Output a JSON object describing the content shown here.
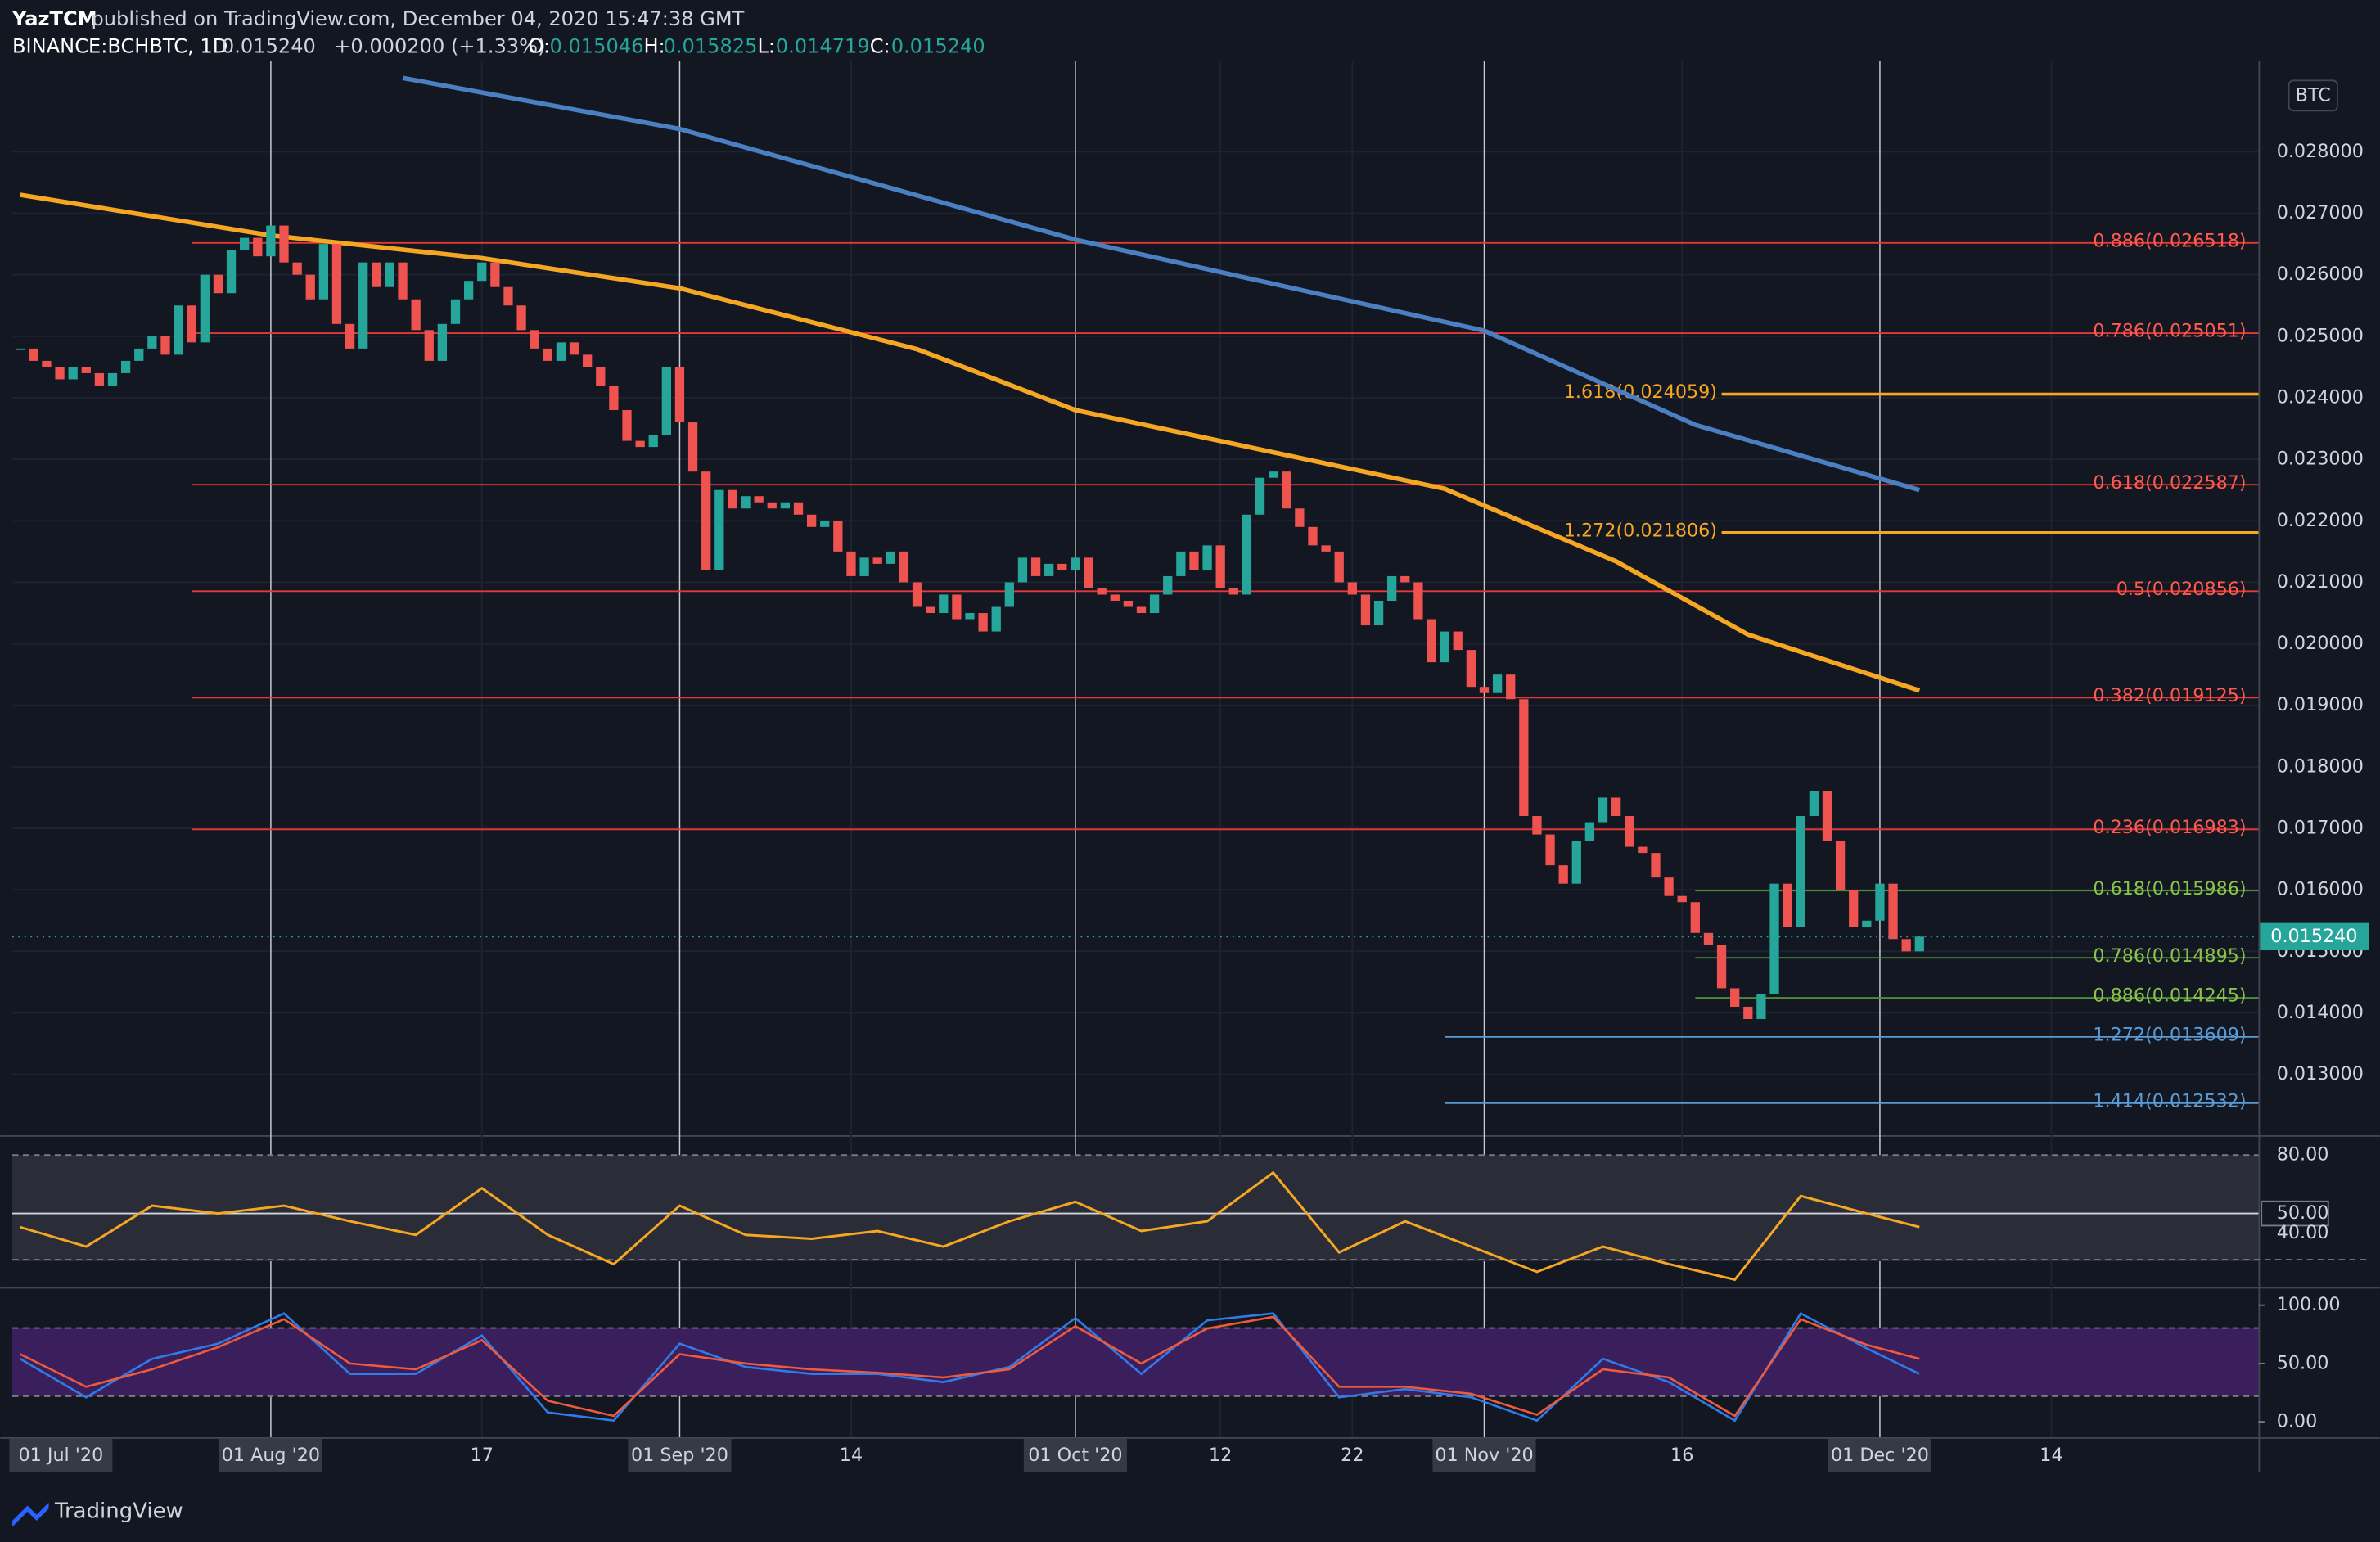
{
  "chart_data": {
    "type": "candlestick",
    "header": {
      "publisher": "YazTCM",
      "published": "published on TradingView.com, December 04, 2020 15:47:38 GMT",
      "symbol": "BINANCE:BCHBTC, 1D",
      "last": "0.015240",
      "change": "+0.000200 (+1.33%)",
      "o_label": "O:",
      "open": "0.015046",
      "h_label": "H:",
      "high": "0.015825",
      "l_label": "L:",
      "low": "0.014719",
      "c_label": "C:",
      "close": "0.015240"
    },
    "unit": "BTC",
    "last_price_label": "0.015240",
    "brand": "TradingView",
    "series": [
      {
        "name": "BCHBTC",
        "up_color": "#26a69a",
        "down_color": "#ef5350",
        "values": [
          0.0248,
          0.0246,
          0.0245,
          0.0243,
          0.0245,
          0.0244,
          0.0242,
          0.0244,
          0.0246,
          0.0248,
          0.025,
          0.0247,
          0.0255,
          0.0249,
          0.026,
          0.0257,
          0.0264,
          0.0266,
          0.0263,
          0.0268,
          0.0262,
          0.026,
          0.0256,
          0.0265,
          0.0252,
          0.0248,
          0.0262,
          0.0258,
          0.0262,
          0.0256,
          0.0251,
          0.0246,
          0.0252,
          0.0256,
          0.0259,
          0.0262,
          0.0258,
          0.0255,
          0.0251,
          0.0248,
          0.0246,
          0.0249,
          0.0247,
          0.0245,
          0.0242,
          0.0238,
          0.0233,
          0.0232,
          0.0234,
          0.0245,
          0.0236,
          0.0228,
          0.0212,
          0.0225,
          0.0222,
          0.0224,
          0.0223,
          0.0222,
          0.0223,
          0.0221,
          0.0219,
          0.022,
          0.0215,
          0.0211,
          0.0214,
          0.0213,
          0.0215,
          0.021,
          0.0206,
          0.0205,
          0.0208,
          0.0204,
          0.0205,
          0.0202,
          0.0206,
          0.021,
          0.0214,
          0.0211,
          0.0213,
          0.0212,
          0.0214,
          0.0209,
          0.0208,
          0.0207,
          0.0206,
          0.0205,
          0.0208,
          0.0211,
          0.0215,
          0.0212,
          0.0216,
          0.0209,
          0.0208,
          0.0221,
          0.0227,
          0.0228,
          0.0222,
          0.0219,
          0.0216,
          0.0215,
          0.021,
          0.0208,
          0.0203,
          0.0207,
          0.0211,
          0.021,
          0.0204,
          0.0197,
          0.0202,
          0.0199,
          0.0193,
          0.0192,
          0.0195,
          0.0191,
          0.0172,
          0.0169,
          0.0164,
          0.0161,
          0.0168,
          0.0171,
          0.0175,
          0.0172,
          0.0167,
          0.0166,
          0.0162,
          0.0159,
          0.0158,
          0.0153,
          0.0151,
          0.0144,
          0.0141,
          0.0139,
          0.0143,
          0.0161,
          0.0154,
          0.0172,
          0.0176,
          0.0168,
          0.016,
          0.0154,
          0.0155,
          0.0161,
          0.0152,
          0.015,
          0.01524
        ]
      }
    ],
    "moving_averages": [
      {
        "color": "#4a7fc1",
        "x": [
          29,
          50,
          80,
          94,
          111,
          127,
          144
        ],
        "values": [
          0.0292,
          0.02837,
          0.02657,
          0.0259,
          0.02509,
          0.02356,
          0.0225
        ]
      },
      {
        "color": "#f5a623",
        "x": [
          0,
          19,
          35,
          50,
          68,
          80,
          94,
          108,
          121,
          131,
          144
        ],
        "values": [
          0.0273,
          0.02664,
          0.02627,
          0.02578,
          0.02479,
          0.0238,
          0.02316,
          0.02252,
          0.02134,
          0.02015,
          0.01924
        ]
      }
    ],
    "levels": [
      {
        "label": "0.886(0.026518)",
        "value": 0.026518,
        "color": "#e53935"
      },
      {
        "label": "0.786(0.025051)",
        "value": 0.025051,
        "color": "#e53935"
      },
      {
        "label": "1.618(0.024059)",
        "value": 0.024059,
        "color": "#f5a623"
      },
      {
        "label": "0.618(0.022587)",
        "value": 0.022587,
        "color": "#e53935"
      },
      {
        "label": "1.272(0.021806)",
        "value": 0.021806,
        "color": "#f5a623"
      },
      {
        "label": "0.5(0.020856)",
        "value": 0.020856,
        "color": "#e53935"
      },
      {
        "label": "0.382(0.019125)",
        "value": 0.019125,
        "color": "#e53935"
      },
      {
        "label": "0.236(0.016983)",
        "value": 0.016983,
        "color": "#e53935"
      },
      {
        "label": "0.618(0.015986)",
        "value": 0.015986,
        "color": "#4c8c3a"
      },
      {
        "label": "0.786(0.014895)",
        "value": 0.014895,
        "color": "#4c8c3a"
      },
      {
        "label": "0.886(0.014245)",
        "value": 0.014245,
        "color": "#4c8c3a"
      },
      {
        "label": "1.272(0.013609)",
        "value": 0.013609,
        "color": "#5b9bd5"
      },
      {
        "label": "1.414(0.012532)",
        "value": 0.012532,
        "color": "#5b9bd5"
      }
    ],
    "xlim": [
      -0.6,
      169.7
    ],
    "xticks": [
      {
        "value": -12,
        "label": "01 Jul '20"
      },
      {
        "value": 19,
        "label": "01 Aug '20"
      },
      {
        "value": 35,
        "label": "17"
      },
      {
        "value": 50,
        "label": "01 Sep '20"
      },
      {
        "value": 63,
        "label": "14"
      },
      {
        "value": 80,
        "label": "01 Oct '20"
      },
      {
        "value": 91,
        "label": "12"
      },
      {
        "value": 101,
        "label": "22"
      },
      {
        "value": 111,
        "label": "01 Nov '20"
      },
      {
        "value": 126,
        "label": "16"
      },
      {
        "value": 141,
        "label": "01 Dec '20"
      },
      {
        "value": 154,
        "label": "14"
      }
    ],
    "ylim": [
      0.01201,
      0.02948
    ],
    "yticks": [
      {
        "value": 0.013,
        "label": "0.013000"
      },
      {
        "value": 0.014,
        "label": "0.014000"
      },
      {
        "value": 0.015,
        "label": "0.015000"
      },
      {
        "value": 0.016,
        "label": "0.016000"
      },
      {
        "value": 0.017,
        "label": "0.017000"
      },
      {
        "value": 0.018,
        "label": "0.018000"
      },
      {
        "value": 0.019,
        "label": "0.019000"
      },
      {
        "value": 0.02,
        "label": "0.020000"
      },
      {
        "value": 0.021,
        "label": "0.021000"
      },
      {
        "value": 0.022,
        "label": "0.022000"
      },
      {
        "value": 0.023,
        "label": "0.023000"
      },
      {
        "value": 0.024,
        "label": "0.024000"
      },
      {
        "value": 0.025,
        "label": "0.025000"
      },
      {
        "value": 0.026,
        "label": "0.026000"
      },
      {
        "value": 0.027,
        "label": "0.027000"
      },
      {
        "value": 0.028,
        "label": "0.028000"
      }
    ],
    "rsi": {
      "color": "#f5a623",
      "ylim": [
        13,
        88.6
      ],
      "yticks": [
        {
          "value": 80,
          "label": "80.00"
        },
        {
          "value": 50,
          "label": "50.00"
        },
        {
          "value": 40,
          "label": "40.00"
        }
      ],
      "x": [
        0,
        5,
        10,
        15,
        20,
        25,
        30,
        35,
        40,
        45,
        50,
        55,
        60,
        65,
        70,
        75,
        80,
        85,
        90,
        95,
        100,
        105,
        110,
        115,
        120,
        125,
        130,
        135,
        140,
        144
      ],
      "values": [
        43,
        33,
        54,
        50,
        54,
        46,
        39,
        63,
        39,
        24,
        54,
        39,
        37,
        41,
        33,
        46,
        56,
        41,
        46,
        71,
        30,
        46,
        33,
        20,
        33,
        24,
        16,
        59,
        50,
        43
      ]
    },
    "stoch": {
      "ylim": [
        -12,
        113
      ],
      "yticks": [
        {
          "value": 100,
          "label": "100.00"
        },
        {
          "value": 50,
          "label": "50.00"
        },
        {
          "value": 0,
          "label": "0.00"
        }
      ],
      "x": [
        0,
        5,
        10,
        15,
        20,
        25,
        30,
        35,
        40,
        45,
        50,
        55,
        60,
        65,
        70,
        75,
        80,
        85,
        90,
        95,
        100,
        105,
        110,
        115,
        120,
        125,
        130,
        135,
        140,
        144
      ],
      "series": [
        {
          "color": "#2f7be8",
          "values": [
            54,
            21,
            54,
            67,
            93,
            41,
            41,
            74,
            8,
            1,
            67,
            47,
            41,
            41,
            34,
            47,
            89,
            41,
            87,
            93,
            21,
            28,
            21,
            1,
            54,
            34,
            1,
            93,
            63,
            41
          ]
        },
        {
          "color": "#f05a3c",
          "values": [
            58,
            30,
            45,
            64,
            88,
            50,
            45,
            70,
            18,
            5,
            58,
            50,
            45,
            42,
            38,
            45,
            82,
            50,
            80,
            90,
            30,
            30,
            24,
            6,
            45,
            38,
            5,
            88,
            66,
            54
          ]
        }
      ]
    }
  }
}
